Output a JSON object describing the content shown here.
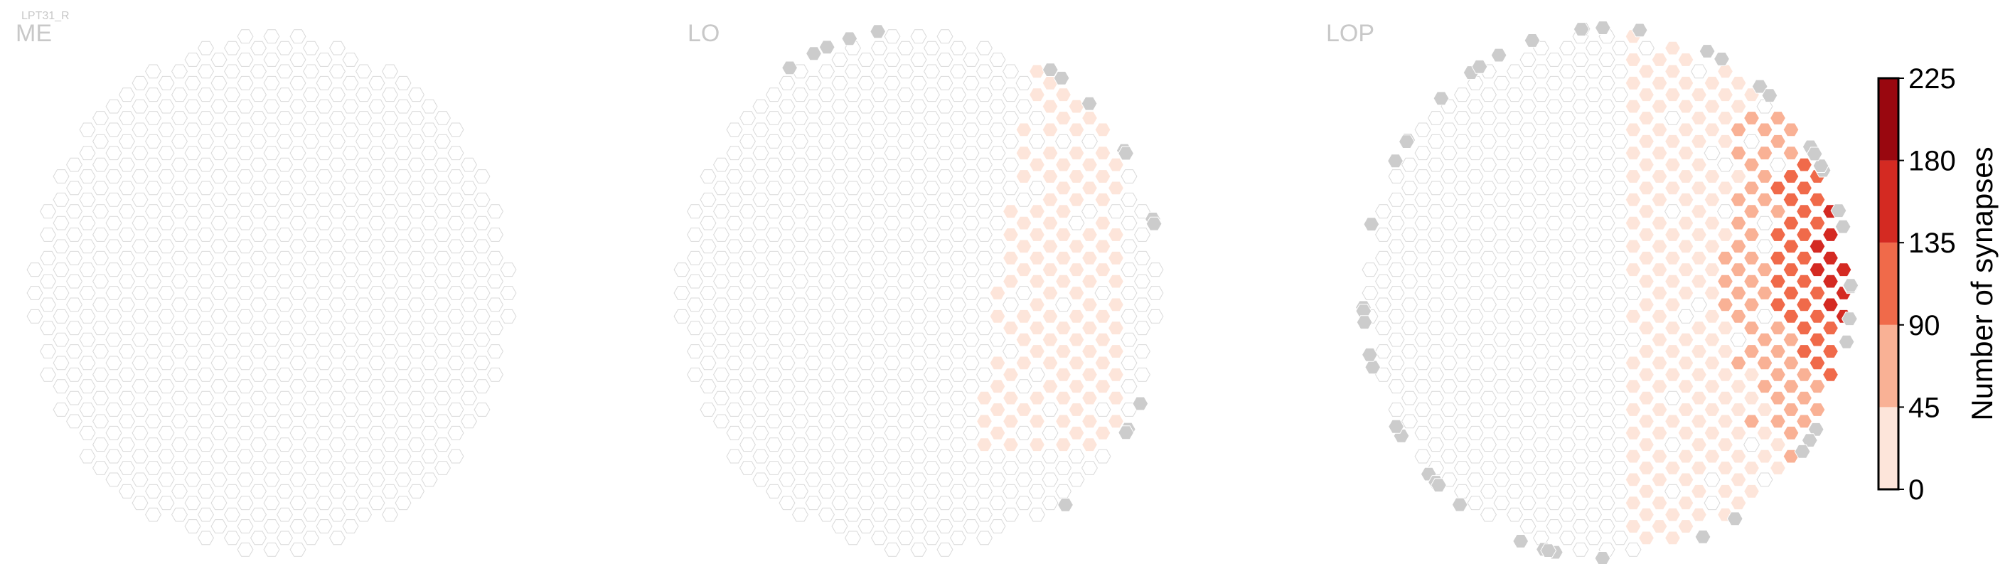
{
  "chart_data": {
    "type": "heatmap",
    "figure_label": "LPT31_R",
    "panels": [
      {
        "name": "ME"
      },
      {
        "name": "LO"
      },
      {
        "name": "LOP"
      }
    ],
    "colorbar": {
      "label": "Number of synapses",
      "ticks": [
        "0",
        "45",
        "90",
        "135",
        "180",
        "225"
      ],
      "range": [
        0,
        225
      ],
      "bins": [
        {
          "range": [
            0,
            45
          ],
          "color": "#fde5da"
        },
        {
          "range": [
            45,
            90
          ],
          "color": "#f9b195"
        },
        {
          "range": [
            90,
            135
          ],
          "color": "#f06a4a"
        },
        {
          "range": [
            135,
            180
          ],
          "color": "#d42a22"
        },
        {
          "range": [
            180,
            225
          ],
          "color": "#99070f"
        }
      ]
    },
    "colors": {
      "empty_fill": "#ffffff",
      "empty_stroke": "#d9d9d9",
      "no_data": "#cccccc",
      "label": "#c8c8c8"
    }
  }
}
